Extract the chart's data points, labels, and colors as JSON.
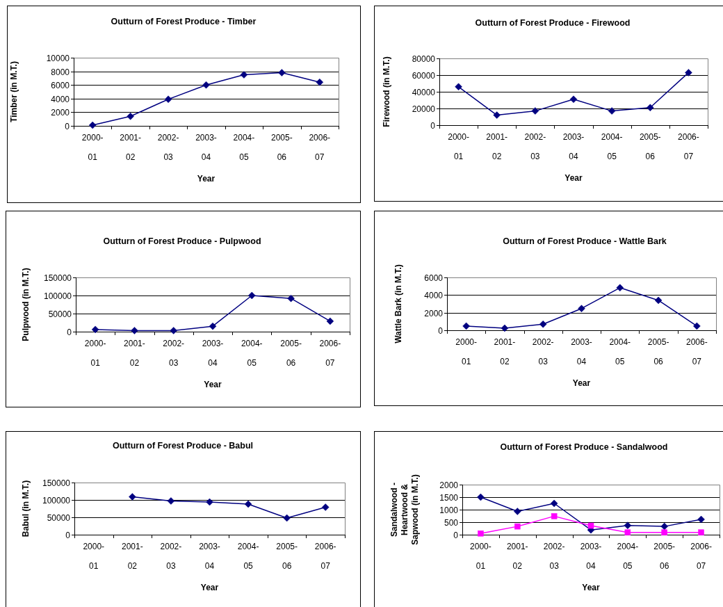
{
  "chart_data": [
    {
      "type": "line",
      "title": "Outturn of Forest Produce - Timber",
      "xlabel": "Year",
      "ylabel": "Timber (in M.T.)",
      "categories": [
        "2000-01",
        "2001-02",
        "2002-03",
        "2003-04",
        "2004-05",
        "2005-06",
        "2006-07"
      ],
      "series": [
        {
          "color": "#000080",
          "values": [
            100,
            1400,
            3900,
            6000,
            7500,
            7800,
            6400
          ]
        }
      ],
      "ylim": [
        0,
        10000
      ],
      "yticks": [
        0,
        2000,
        4000,
        6000,
        8000,
        10000
      ],
      "grid": "y",
      "marker": "diamond"
    },
    {
      "type": "line",
      "title": "Outturn of Forest Produce - Firewood",
      "xlabel": "Year",
      "ylabel": "Firewood (in M.T.)",
      "categories": [
        "2000-01",
        "2001-02",
        "2002-03",
        "2003-04",
        "2004-05",
        "2005-06",
        "2006-07"
      ],
      "series": [
        {
          "color": "#000080",
          "values": [
            46000,
            12000,
            17000,
            31000,
            17000,
            21000,
            63000
          ]
        }
      ],
      "ylim": [
        0,
        80000
      ],
      "yticks": [
        0,
        20000,
        40000,
        60000,
        80000
      ],
      "grid": "y",
      "marker": "diamond"
    },
    {
      "type": "line",
      "title": "Outturn of Forest Produce - Pulpwood",
      "xlabel": "Year",
      "ylabel": "Pulpwood (in M.T.)",
      "categories": [
        "2000-01",
        "2001-02",
        "2002-03",
        "2003-04",
        "2004-05",
        "2005-06",
        "2006-07"
      ],
      "series": [
        {
          "color": "#000080",
          "values": [
            6000,
            3000,
            3000,
            15000,
            100000,
            92000,
            29000
          ]
        }
      ],
      "ylim": [
        0,
        150000
      ],
      "yticks": [
        0,
        50000,
        100000,
        150000
      ],
      "grid": "y",
      "marker": "diamond"
    },
    {
      "type": "line",
      "title": "Outturn of Forest Produce - Wattle Bark",
      "xlabel": "Year",
      "ylabel": "Wattle Bark (in M.T.)",
      "categories": [
        "2000-01",
        "2001-02",
        "2002-03",
        "2003-04",
        "2004-05",
        "2005-06",
        "2006-07"
      ],
      "series": [
        {
          "color": "#000080",
          "values": [
            480,
            240,
            690,
            2470,
            4830,
            3400,
            480
          ]
        }
      ],
      "ylim": [
        0,
        6000
      ],
      "yticks": [
        0,
        2000,
        4000,
        6000
      ],
      "grid": "y",
      "marker": "diamond"
    },
    {
      "type": "line",
      "title": "Outturn of Forest Produce - Babul",
      "xlabel": "Year",
      "ylabel": "Babul (in M.T.)",
      "categories": [
        "2000-01",
        "2001-02",
        "2002-03",
        "2003-04",
        "2004-05",
        "2005-06",
        "2006-07"
      ],
      "series": [
        {
          "color": "#000080",
          "values": [
            null,
            109000,
            97000,
            94000,
            88000,
            48000,
            79000
          ]
        }
      ],
      "ylim": [
        0,
        150000
      ],
      "yticks": [
        0,
        50000,
        100000,
        150000
      ],
      "grid": "y",
      "marker": "diamond"
    },
    {
      "type": "line",
      "title": "Outturn of Forest Produce - Sandalwood",
      "xlabel": "Year",
      "ylabel": "Sandalwood - Heartwood & Sapwood (in M.T.)",
      "categories": [
        "2000-01",
        "2001-02",
        "2002-03",
        "2003-04",
        "2004-05",
        "2005-06",
        "2006-07"
      ],
      "series": [
        {
          "color": "#000080",
          "values": [
            1500,
            930,
            1250,
            190,
            370,
            330,
            610
          ]
        },
        {
          "color": "#ff00ff",
          "marker": "square",
          "values": [
            50,
            330,
            740,
            360,
            90,
            90,
            90
          ]
        }
      ],
      "ylim": [
        0,
        2000
      ],
      "yticks": [
        0,
        500,
        1000,
        1500,
        2000
      ],
      "grid": "y",
      "marker": "diamond"
    }
  ]
}
